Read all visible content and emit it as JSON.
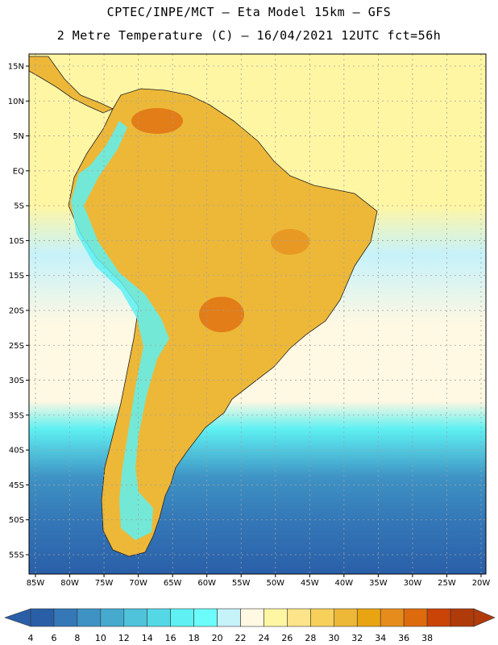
{
  "header": {
    "line1": "CPTEC/INPE/MCT –  Eta Model 15km – GFS",
    "line2": "2 Metre Temperature (C) – 16/04/2021 12UTC fct=56h"
  },
  "axes": {
    "lat_labels": [
      "15N",
      "10N",
      "5N",
      "EQ",
      "5S",
      "10S",
      "15S",
      "20S",
      "25S",
      "30S",
      "35S",
      "40S",
      "45S",
      "50S",
      "55S"
    ],
    "lon_labels": [
      "85W",
      "80W",
      "75W",
      "70W",
      "65W",
      "60W",
      "55W",
      "50W",
      "45W",
      "40W",
      "35W",
      "30W",
      "25W",
      "20W"
    ]
  },
  "colorbar": {
    "ticks": [
      "4",
      "6",
      "8",
      "10",
      "12",
      "14",
      "16",
      "18",
      "20",
      "22",
      "24",
      "26",
      "28",
      "30",
      "32",
      "34",
      "36",
      "38"
    ],
    "colors": [
      "#2a5fa8",
      "#3478b8",
      "#3e92c4",
      "#45aace",
      "#4ec3da",
      "#55d8e6",
      "#5ef0f2",
      "#6bfcfc",
      "#c6f2fa",
      "#fff8e2",
      "#fff6a4",
      "#fde48a",
      "#f6d05a",
      "#edb838",
      "#e9a411",
      "#e68c1c",
      "#de6a0e",
      "#c94406",
      "#b13a0a"
    ],
    "left_arrow_color": "#2a5fa8",
    "right_arrow_color": "#b13a0a"
  },
  "map": {
    "ocean_bands": [
      {
        "lat": 15,
        "color": "#fff6a4"
      },
      {
        "lat": -5,
        "color": "#fff6a4"
      },
      {
        "lat": -12,
        "color": "#c6f2fa"
      },
      {
        "lat": -22,
        "color": "#fff8e2"
      },
      {
        "lat": -33,
        "color": "#fff8e2"
      },
      {
        "lat": -37,
        "color": "#5ef0f2"
      },
      {
        "lat": -44,
        "color": "#3e92c4"
      },
      {
        "lat": -50,
        "color": "#3478b8"
      },
      {
        "lat": -58,
        "color": "#2a5fa8"
      }
    ],
    "land_color": "#edb838",
    "hot_color": "#de6a0e",
    "andes_color": "#5ef0f2",
    "grid_color": "#a0a0a0"
  }
}
